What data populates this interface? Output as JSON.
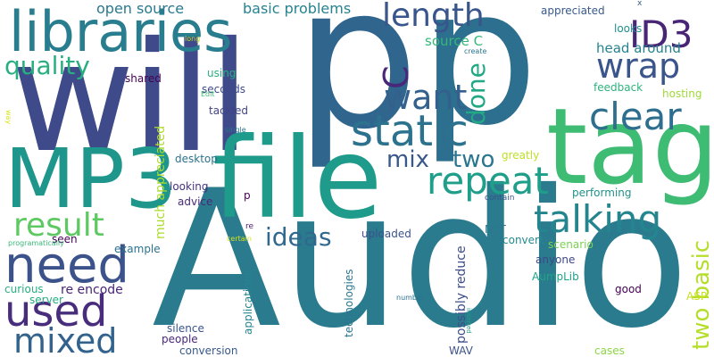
{
  "words": [
    {
      "text": "Audio",
      "color": "#2a7b8e"
    },
    {
      "text": "will",
      "color": "#3e4a89"
    },
    {
      "text": "p",
      "color": "#30668e"
    },
    {
      "text": "p",
      "color": "#2d6f8e"
    },
    {
      "text": "file",
      "color": "#1e9b8a"
    },
    {
      "text": "tag",
      "color": "#3fbc73"
    },
    {
      "text": "MP3",
      "color": "#1f968b"
    },
    {
      "text": "libraries",
      "color": "#287d8e"
    },
    {
      "text": "need",
      "color": "#3b528b"
    },
    {
      "text": "used",
      "color": "#472d7b"
    },
    {
      "text": "mixed",
      "color": "#33638d"
    },
    {
      "text": "static",
      "color": "#2c728e"
    },
    {
      "text": "talking",
      "color": "#25858e"
    },
    {
      "text": "repeat",
      "color": "#1f9e89"
    },
    {
      "text": "clear",
      "color": "#2e6e8e"
    },
    {
      "text": "want",
      "color": "#34608d"
    },
    {
      "text": "wrap",
      "color": "#3a548c"
    },
    {
      "text": "ID3",
      "color": "#482576"
    },
    {
      "text": "length",
      "color": "#39568c"
    },
    {
      "text": "result",
      "color": "#5ec962"
    },
    {
      "text": "ideas",
      "color": "#31688e"
    },
    {
      "text": "quality",
      "color": "#29af7f"
    },
    {
      "text": "mix",
      "color": "#38588c"
    },
    {
      "text": "two",
      "color": "#2a768e"
    },
    {
      "text": "done",
      "color": "#22a884"
    },
    {
      "text": "C",
      "color": "#482878"
    },
    {
      "text": "two basic",
      "color": "#b5de2b"
    },
    {
      "text": "open source",
      "color": "#2a788e"
    },
    {
      "text": "basic problems",
      "color": "#26828e"
    },
    {
      "text": "source C",
      "color": "#35b779"
    },
    {
      "text": "head around",
      "color": "#26828e"
    },
    {
      "text": "appreciated",
      "color": "#38598c"
    },
    {
      "text": "looks",
      "color": "#21918c"
    },
    {
      "text": "feedback",
      "color": "#2db27d"
    },
    {
      "text": "hosting",
      "color": "#a0da39"
    },
    {
      "text": "shared",
      "color": "#440154"
    },
    {
      "text": "using",
      "color": "#29af7f"
    },
    {
      "text": "seconds",
      "color": "#3e4a89"
    },
    {
      "text": "tackled",
      "color": "#414487"
    },
    {
      "text": "much appreciated",
      "color": "#addc30"
    },
    {
      "text": "desktop",
      "color": "#2c728e"
    },
    {
      "text": "looking",
      "color": "#46337f"
    },
    {
      "text": "advice",
      "color": "#472c7a"
    },
    {
      "text": "seen",
      "color": "#440154"
    },
    {
      "text": "example",
      "color": "#2c728e"
    },
    {
      "text": "curious",
      "color": "#27ad81"
    },
    {
      "text": "server",
      "color": "#25ac82"
    },
    {
      "text": "re encode",
      "color": "#482475"
    },
    {
      "text": "silence",
      "color": "#3a548c"
    },
    {
      "text": "people",
      "color": "#482878"
    },
    {
      "text": "conversion",
      "color": "#38598c"
    },
    {
      "text": "applications",
      "color": "#25858e"
    },
    {
      "text": "technologies",
      "color": "#2a768e"
    },
    {
      "text": "uploaded",
      "color": "#3b528b"
    },
    {
      "text": "possibly reduce",
      "color": "#3d4e8a"
    },
    {
      "text": "NET",
      "color": "#2a788e"
    },
    {
      "text": "convert",
      "color": "#23898e"
    },
    {
      "text": "scenario",
      "color": "#7ad151"
    },
    {
      "text": "anyone",
      "color": "#3e4989"
    },
    {
      "text": "AumpLib",
      "color": "#20a386"
    },
    {
      "text": "good",
      "color": "#440154"
    },
    {
      "text": "ASP",
      "color": "#cae11f"
    },
    {
      "text": "cases",
      "color": "#8bd646"
    },
    {
      "text": "WAV",
      "color": "#3b528b"
    },
    {
      "text": "greatly",
      "color": "#bddf26"
    },
    {
      "text": "performing",
      "color": "#21918c"
    },
    {
      "text": "p",
      "color": "#440154"
    },
    {
      "text": "re",
      "color": "#482071"
    },
    {
      "text": "contain",
      "color": "#3b528b"
    },
    {
      "text": "certain",
      "color": "#d2e21b"
    },
    {
      "text": "number",
      "color": "#2c728e"
    },
    {
      "text": "inserted",
      "color": "#1fa088"
    },
    {
      "text": "programatically",
      "color": "#38b977"
    },
    {
      "text": "single",
      "color": "#2a768e"
    },
    {
      "text": "Edit",
      "color": "#3fbc73"
    },
    {
      "text": "way",
      "color": "#d8e219"
    },
    {
      "text": "long",
      "color": "#b5de2b"
    },
    {
      "text": "create",
      "color": "#2a788e"
    },
    {
      "text": "x",
      "color": "#35608d"
    }
  ]
}
